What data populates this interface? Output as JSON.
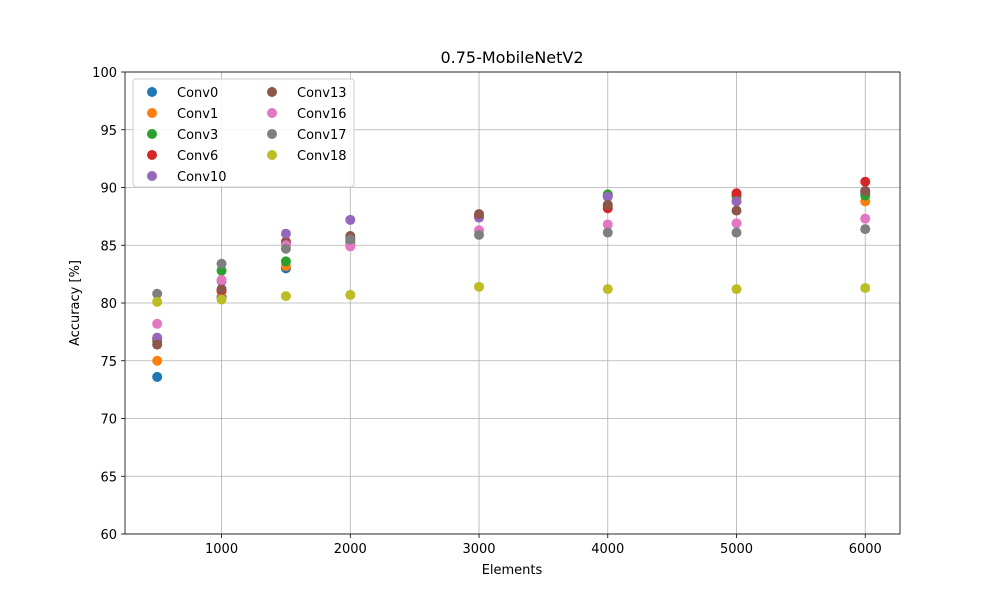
{
  "chart_data": {
    "type": "scatter",
    "title": "0.75-MobileNetV2",
    "xlabel": "Elements",
    "ylabel": "Accuracy [%]",
    "xlim": [
      250,
      6270
    ],
    "ylim": [
      60,
      100
    ],
    "x_ticks": [
      1000,
      2000,
      3000,
      4000,
      5000,
      6000
    ],
    "y_ticks": [
      60,
      65,
      70,
      75,
      80,
      85,
      90,
      95,
      100
    ],
    "x_tick_labels": [
      "1000",
      "2000",
      "3000",
      "4000",
      "5000",
      "6000"
    ],
    "y_tick_labels": [
      "60",
      "65",
      "70",
      "75",
      "80",
      "85",
      "90",
      "95",
      "100"
    ],
    "grid": true,
    "legend_position": "upper-left",
    "legend_columns": 2,
    "x": [
      500,
      1000,
      1500,
      2000,
      3000,
      4000,
      5000,
      6000
    ],
    "series": [
      {
        "name": "Conv0",
        "color": "#1f77b4",
        "values": [
          73.6,
          80.5,
          83.0,
          85.3,
          87.5,
          89.3,
          89.3,
          89.5
        ]
      },
      {
        "name": "Conv1",
        "color": "#ff7f0e",
        "values": [
          75.0,
          81.0,
          83.2,
          85.5,
          87.4,
          88.4,
          89.2,
          88.8
        ]
      },
      {
        "name": "Conv3",
        "color": "#2ca02c",
        "values": [
          76.7,
          82.8,
          83.6,
          85.1,
          87.6,
          89.4,
          89.3,
          89.3
        ]
      },
      {
        "name": "Conv6",
        "color": "#d62728",
        "values": [
          76.9,
          81.1,
          85.3,
          85.6,
          87.6,
          88.2,
          89.5,
          90.5
        ]
      },
      {
        "name": "Conv10",
        "color": "#9467bd",
        "values": [
          77.0,
          81.9,
          86.0,
          87.2,
          87.4,
          89.2,
          88.8,
          89.7
        ]
      },
      {
        "name": "Conv13",
        "color": "#8c564b",
        "values": [
          76.4,
          81.2,
          85.2,
          85.8,
          87.7,
          88.5,
          88.0,
          89.7
        ]
      },
      {
        "name": "Conv16",
        "color": "#e377c2",
        "values": [
          78.2,
          82.0,
          85.0,
          84.9,
          86.3,
          86.8,
          86.9,
          87.3
        ]
      },
      {
        "name": "Conv17",
        "color": "#7f7f7f",
        "values": [
          80.8,
          83.4,
          84.7,
          85.5,
          85.9,
          86.1,
          86.1,
          86.4
        ]
      },
      {
        "name": "Conv18",
        "color": "#bcbd22",
        "values": [
          80.1,
          80.3,
          80.6,
          80.7,
          81.4,
          81.2,
          81.2,
          81.3
        ]
      }
    ]
  }
}
